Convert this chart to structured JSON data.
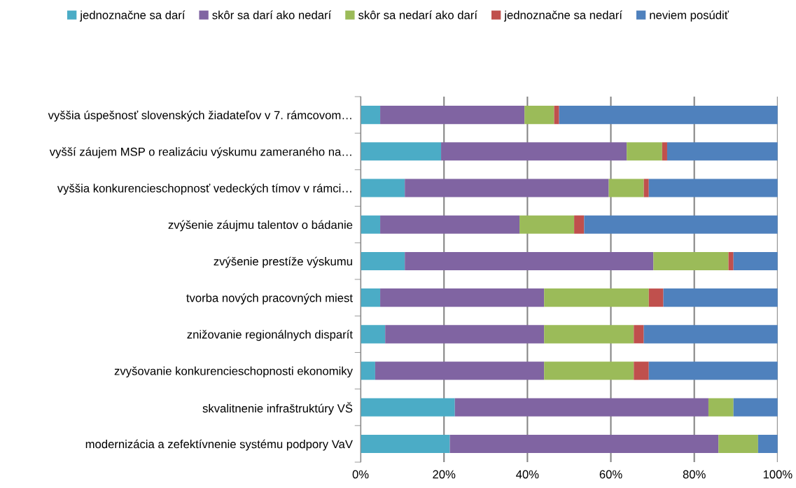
{
  "chart_data": {
    "type": "bar",
    "orientation": "horizontal",
    "stacked": true,
    "legend": "top",
    "grid": "x",
    "categories": [
      "vyššia úspešnosť slovenských žiadateľov v 7. rámcovom…",
      "vyšší záujem MSP o realizáciu výskumu zameraného na…",
      "vyššia konkurencieschopnosť vedeckých tímov v rámci…",
      "zvýšenie záujmu talentov o bádanie",
      "zvýšenie prestíže výskumu",
      "tvorba nových pracovných miest",
      "znižovanie regionálnych disparít",
      "zvyšovanie konkurencieschopnosti ekonomiky",
      "skvalitnenie infraštruktúry VŠ",
      "modernizácia a zefektívnenie systému podpory VaV"
    ],
    "xlim": [
      0,
      100
    ],
    "xticks": [
      {
        "value": 0,
        "label": "0%"
      },
      {
        "value": 20,
        "label": "20%"
      },
      {
        "value": 40,
        "label": "40%"
      },
      {
        "value": 60,
        "label": "60%"
      },
      {
        "value": 80,
        "label": "80%"
      },
      {
        "value": 100,
        "label": "100%"
      }
    ],
    "series": [
      {
        "name": "jednoznačne sa darí",
        "color": "#4bacc6",
        "values": [
          4.7,
          19.3,
          10.6,
          4.7,
          10.6,
          4.7,
          5.9,
          3.5,
          22.6,
          21.4
        ]
      },
      {
        "name": "skôr sa darí ako nedarí",
        "color": "#8064a2",
        "values": [
          34.6,
          44.5,
          48.9,
          33.4,
          59.6,
          39.3,
          38.1,
          40.5,
          60.8,
          64.4
        ]
      },
      {
        "name": "skôr sa nedarí ako darí",
        "color": "#9bbb59",
        "values": [
          7.1,
          8.5,
          8.4,
          13.1,
          18.0,
          25.1,
          21.5,
          21.5,
          6.0,
          9.5
        ]
      },
      {
        "name": "jednoznačne sa nedarí",
        "color": "#c0504d",
        "values": [
          1.2,
          1.2,
          1.2,
          2.4,
          1.2,
          3.5,
          2.4,
          3.6,
          0,
          0
        ]
      },
      {
        "name": "neviem posúdiť",
        "color": "#4f81bd",
        "values": [
          52.4,
          26.5,
          30.9,
          46.4,
          10.6,
          27.4,
          32.1,
          30.9,
          10.6,
          4.7
        ]
      }
    ]
  }
}
